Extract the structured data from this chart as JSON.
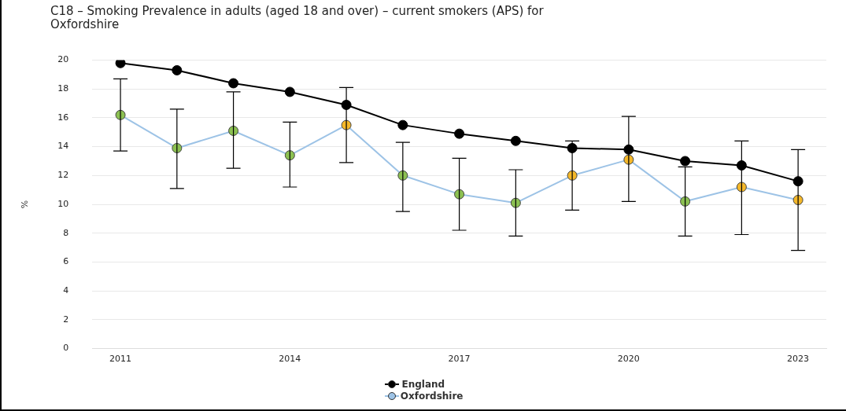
{
  "chart_data": {
    "type": "line",
    "title": "C18 – Smoking Prevalence in adults (aged 18 and over) – current smokers (APS) for Oxfordshire",
    "ylabel": "%",
    "categories": [
      "2011",
      null,
      null,
      "2014",
      null,
      null,
      "2017",
      null,
      null,
      "2020",
      null,
      null,
      "2023"
    ],
    "ylim": [
      0,
      20
    ],
    "yticks": [
      0,
      2,
      4,
      6,
      8,
      10,
      12,
      14,
      16,
      18,
      20
    ],
    "grid": "y",
    "legend": "bottom",
    "marker": "circle",
    "series": [
      {
        "name": "England",
        "color": "#000000",
        "values": [
          19.8,
          19.3,
          18.4,
          17.8,
          16.9,
          15.5,
          14.9,
          14.4,
          13.9,
          13.8,
          13.0,
          12.7,
          11.6
        ]
      },
      {
        "name": "Oxfordshire",
        "color": "#9dc3e6",
        "colors": [
          "#8cc152",
          "#8cc152",
          "#8cc152",
          "#8cc152",
          "#f5b829",
          "#8cc152",
          "#8cc152",
          "#8cc152",
          "#f5b829",
          "#f5b829",
          "#8cc152",
          "#f5b829",
          "#f5b829"
        ],
        "values": [
          16.2,
          13.9,
          15.1,
          13.4,
          15.5,
          12.0,
          10.7,
          10.1,
          12.0,
          13.1,
          10.2,
          11.2,
          10.3
        ],
        "errors": [
          [
            13.7,
            18.7
          ],
          [
            11.1,
            16.6
          ],
          [
            12.5,
            17.8
          ],
          [
            11.2,
            15.7
          ],
          [
            12.9,
            18.1
          ],
          [
            9.5,
            14.3
          ],
          [
            8.2,
            13.2
          ],
          [
            7.8,
            12.4
          ],
          [
            9.6,
            14.4
          ],
          [
            10.2,
            16.1
          ],
          [
            7.8,
            12.6
          ],
          [
            7.9,
            14.4
          ],
          [
            6.8,
            13.8
          ]
        ]
      }
    ]
  }
}
